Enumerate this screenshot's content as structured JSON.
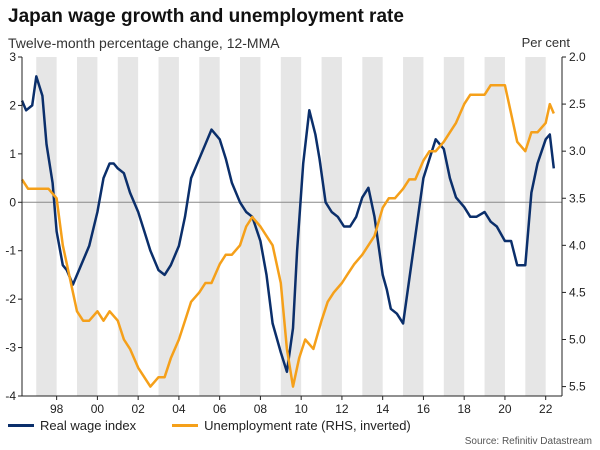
{
  "title": "Japan wage growth and unemployment rate",
  "subtitle": "Twelve-month percentage change, 12-MMA",
  "right_unit": "Per cent",
  "source": "Source: Refinitiv Datastream",
  "colors": {
    "wage": "#0b2f6b",
    "unemployment": "#f5a01a",
    "band": "#e6e6e6",
    "zero": "#888888",
    "axis": "#222222"
  },
  "chart_data": {
    "type": "line",
    "title": "Japan wage growth and unemployment rate",
    "xlabel": "",
    "ylabel": "Twelve-month percentage change, 12-MMA",
    "y2label": "Per cent",
    "xlim": [
      1996.3,
      2022.8
    ],
    "ylim": [
      -4,
      3
    ],
    "y2lim": [
      2.0,
      5.6
    ],
    "y2_inverted": true,
    "x_ticks": [
      1998,
      2000,
      2002,
      2004,
      2006,
      2008,
      2010,
      2012,
      2014,
      2016,
      2018,
      2020,
      2022
    ],
    "x_tick_labels": [
      "98",
      "00",
      "02",
      "04",
      "06",
      "08",
      "10",
      "12",
      "14",
      "16",
      "18",
      "20",
      "22"
    ],
    "y_ticks": [
      -4,
      -3,
      -2,
      -1,
      0,
      1,
      2,
      3
    ],
    "y_tick_labels": [
      "-4",
      "-3",
      "-2",
      "-1",
      "0",
      "1",
      "2",
      "3"
    ],
    "y2_ticks": [
      2.0,
      2.5,
      3.0,
      3.5,
      4.0,
      4.5,
      5.0,
      5.5
    ],
    "y2_tick_labels": [
      "2.0",
      "2.5",
      "3.0",
      "3.5",
      "4.0",
      "4.5",
      "5.0",
      "5.5"
    ],
    "shaded_bands": [
      [
        1997,
        1998
      ],
      [
        1999,
        2000
      ],
      [
        2001,
        2002
      ],
      [
        2003,
        2004
      ],
      [
        2005,
        2006
      ],
      [
        2007,
        2008
      ],
      [
        2009,
        2010
      ],
      [
        2011,
        2012
      ],
      [
        2013,
        2014
      ],
      [
        2015,
        2016
      ],
      [
        2017,
        2018
      ],
      [
        2019,
        2020
      ],
      [
        2021,
        2022
      ]
    ],
    "series": [
      {
        "name": "Real wage index",
        "axis": "left",
        "x": [
          1996.3,
          1996.5,
          1996.8,
          1997.0,
          1997.3,
          1997.5,
          1997.8,
          1998.0,
          1998.3,
          1998.5,
          1998.8,
          1999.0,
          1999.3,
          1999.6,
          2000.0,
          2000.3,
          2000.6,
          2000.8,
          2001.0,
          2001.3,
          2001.6,
          2002.0,
          2002.3,
          2002.6,
          2003.0,
          2003.3,
          2003.6,
          2004.0,
          2004.3,
          2004.6,
          2005.0,
          2005.3,
          2005.6,
          2006.0,
          2006.3,
          2006.6,
          2007.0,
          2007.3,
          2007.6,
          2008.0,
          2008.3,
          2008.6,
          2009.0,
          2009.3,
          2009.6,
          2009.8,
          2010.1,
          2010.4,
          2010.7,
          2010.9,
          2011.2,
          2011.5,
          2011.8,
          2012.1,
          2012.4,
          2012.7,
          2013.0,
          2013.3,
          2013.6,
          2014.0,
          2014.2,
          2014.4,
          2014.7,
          2015.0,
          2015.3,
          2015.6,
          2016.0,
          2016.3,
          2016.6,
          2017.0,
          2017.3,
          2017.6,
          2018.0,
          2018.3,
          2018.6,
          2019.0,
          2019.3,
          2019.6,
          2020.0,
          2020.3,
          2020.6,
          2021.0,
          2021.3,
          2021.6,
          2022.0,
          2022.2,
          2022.4
        ],
        "values": [
          2.1,
          1.9,
          2.0,
          2.6,
          2.2,
          1.2,
          0.4,
          -0.6,
          -1.3,
          -1.4,
          -1.7,
          -1.5,
          -1.2,
          -0.9,
          -0.2,
          0.5,
          0.8,
          0.8,
          0.7,
          0.6,
          0.2,
          -0.2,
          -0.6,
          -1.0,
          -1.4,
          -1.5,
          -1.3,
          -0.9,
          -0.3,
          0.5,
          0.9,
          1.2,
          1.5,
          1.3,
          0.9,
          0.4,
          0.0,
          -0.2,
          -0.3,
          -0.8,
          -1.5,
          -2.5,
          -3.1,
          -3.5,
          -2.6,
          -1.0,
          0.8,
          1.9,
          1.4,
          0.9,
          0.0,
          -0.2,
          -0.3,
          -0.5,
          -0.5,
          -0.3,
          0.1,
          0.3,
          -0.3,
          -1.5,
          -1.8,
          -2.2,
          -2.3,
          -2.5,
          -1.6,
          -0.7,
          0.5,
          0.9,
          1.3,
          1.1,
          0.5,
          0.1,
          -0.1,
          -0.3,
          -0.3,
          -0.2,
          -0.4,
          -0.5,
          -0.8,
          -0.8,
          -1.3,
          -1.3,
          0.2,
          0.8,
          1.3,
          1.4,
          0.7
        ]
      },
      {
        "name": "Unemployment rate (RHS, inverted)",
        "axis": "right",
        "x": [
          1996.3,
          1996.6,
          1997.0,
          1997.3,
          1997.6,
          1998.0,
          1998.3,
          1998.6,
          1999.0,
          1999.3,
          1999.6,
          2000.0,
          2000.3,
          2000.6,
          2001.0,
          2001.3,
          2001.6,
          2002.0,
          2002.3,
          2002.6,
          2003.0,
          2003.3,
          2003.6,
          2004.0,
          2004.3,
          2004.6,
          2005.0,
          2005.3,
          2005.6,
          2006.0,
          2006.3,
          2006.6,
          2007.0,
          2007.3,
          2007.6,
          2008.0,
          2008.3,
          2008.6,
          2009.0,
          2009.3,
          2009.6,
          2009.9,
          2010.2,
          2010.6,
          2011.0,
          2011.3,
          2011.6,
          2012.0,
          2012.3,
          2012.6,
          2013.0,
          2013.3,
          2013.6,
          2014.0,
          2014.3,
          2014.6,
          2015.0,
          2015.3,
          2015.6,
          2016.0,
          2016.3,
          2016.6,
          2017.0,
          2017.3,
          2017.6,
          2018.0,
          2018.3,
          2018.6,
          2019.0,
          2019.3,
          2019.6,
          2020.0,
          2020.3,
          2020.6,
          2021.0,
          2021.3,
          2021.6,
          2022.0,
          2022.2,
          2022.4
        ],
        "values": [
          3.3,
          3.4,
          3.4,
          3.4,
          3.4,
          3.5,
          4.0,
          4.3,
          4.7,
          4.8,
          4.8,
          4.7,
          4.8,
          4.7,
          4.8,
          5.0,
          5.1,
          5.3,
          5.4,
          5.5,
          5.4,
          5.4,
          5.2,
          5.0,
          4.8,
          4.6,
          4.5,
          4.4,
          4.4,
          4.2,
          4.1,
          4.1,
          4.0,
          3.8,
          3.7,
          3.8,
          3.9,
          4.0,
          4.4,
          5.1,
          5.5,
          5.2,
          5.0,
          5.1,
          4.8,
          4.6,
          4.5,
          4.4,
          4.3,
          4.2,
          4.1,
          4.0,
          3.9,
          3.6,
          3.5,
          3.5,
          3.4,
          3.3,
          3.3,
          3.1,
          3.0,
          3.0,
          2.9,
          2.8,
          2.7,
          2.5,
          2.4,
          2.4,
          2.4,
          2.3,
          2.3,
          2.3,
          2.6,
          2.9,
          3.0,
          2.8,
          2.8,
          2.7,
          2.5,
          2.6
        ]
      }
    ]
  },
  "legend": [
    {
      "label": "Real wage index",
      "color": "#0b2f6b"
    },
    {
      "label": "Unemployment rate (RHS, inverted)",
      "color": "#f5a01a"
    }
  ]
}
